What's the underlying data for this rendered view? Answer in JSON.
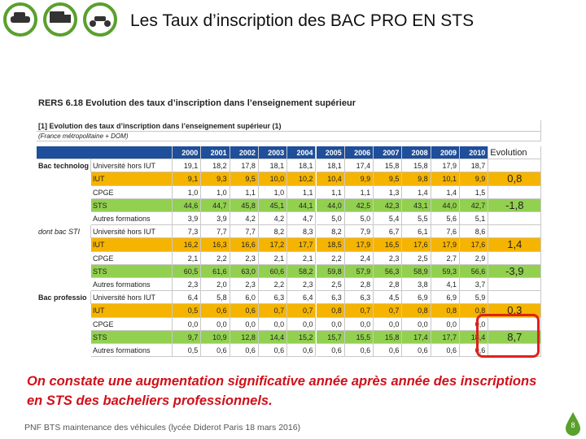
{
  "header": {
    "title": "Les Taux d’inscription des BAC PRO EN STS"
  },
  "table": {
    "title": "RERS 6.18 Evolution des taux d’inscription dans l’enseignement supérieur",
    "subtitle": "[1] Evolution des taux d’inscription dans l’enseignement supérieur (1)",
    "scope": "(France métropolitaine + DOM)",
    "columns": [
      "2000",
      "2001",
      "2002",
      "2003",
      "2004",
      "2005",
      "2006",
      "2007",
      "2008",
      "2009",
      "2010",
      "Evolution"
    ],
    "groups": [
      {
        "label": "Bac technolog",
        "rows": [
          {
            "label": "Université hors IUT",
            "values": [
              "19,1",
              "18,2",
              "17,8",
              "18,1",
              "18,1",
              "18,1",
              "17,4",
              "15,8",
              "15,8",
              "17,9",
              "18,7"
            ]
          },
          {
            "label": "IUT",
            "color": "#f5b400",
            "values": [
              "9,1",
              "9,3",
              "9,5",
              "10,0",
              "10,2",
              "10,4",
              "9,9",
              "9,5",
              "9,8",
              "10,1",
              "9,9"
            ],
            "evolution": "0,8"
          },
          {
            "label": "CPGE",
            "values": [
              "1,0",
              "1,0",
              "1,1",
              "1,0",
              "1,1",
              "1,1",
              "1,1",
              "1,3",
              "1,4",
              "1,4",
              "1,5"
            ]
          },
          {
            "label": "STS",
            "color": "#92d050",
            "values": [
              "44,6",
              "44,7",
              "45,8",
              "45,1",
              "44,1",
              "44,0",
              "42,5",
              "42,3",
              "43,1",
              "44,0",
              "42,7"
            ],
            "evolution": "-1,8"
          },
          {
            "label": "Autres formations",
            "values": [
              "3,9",
              "3,9",
              "4,2",
              "4,2",
              "4,7",
              "5,0",
              "5,0",
              "5,4",
              "5,5",
              "5,6",
              "5,1"
            ]
          }
        ]
      },
      {
        "label": "dont bac STI",
        "rows": [
          {
            "label": "Université hors IUT",
            "values": [
              "7,3",
              "7,7",
              "7,7",
              "8,2",
              "8,3",
              "8,2",
              "7,9",
              "6,7",
              "6,1",
              "7,6",
              "8,6"
            ]
          },
          {
            "label": "IUT",
            "color": "#f5b400",
            "values": [
              "16,2",
              "16,3",
              "16,6",
              "17,2",
              "17,7",
              "18,5",
              "17,9",
              "16,5",
              "17,6",
              "17,9",
              "17,6"
            ],
            "evolution": "1,4"
          },
          {
            "label": "CPGE",
            "values": [
              "2,1",
              "2,2",
              "2,3",
              "2,1",
              "2,1",
              "2,2",
              "2,4",
              "2,3",
              "2,5",
              "2,7",
              "2,9"
            ]
          },
          {
            "label": "STS",
            "color": "#92d050",
            "values": [
              "60,5",
              "61,6",
              "63,0",
              "60,6",
              "58,2",
              "59,8",
              "57,9",
              "56,3",
              "58,9",
              "59,3",
              "56,6"
            ],
            "evolution": "-3,9"
          },
          {
            "label": "Autres formations",
            "values": [
              "2,3",
              "2,0",
              "2,3",
              "2,2",
              "2,3",
              "2,5",
              "2,8",
              "2,8",
              "3,8",
              "4,1",
              "3,7"
            ]
          }
        ]
      },
      {
        "label": "Bac professio",
        "rows": [
          {
            "label": "Université hors IUT",
            "values": [
              "6,4",
              "5,8",
              "6,0",
              "6,3",
              "6,4",
              "6,3",
              "6,3",
              "4,5",
              "6,9",
              "6,9",
              "5,9"
            ]
          },
          {
            "label": "IUT",
            "color": "#f5b400",
            "values": [
              "0,5",
              "0,6",
              "0,6",
              "0,7",
              "0,7",
              "0,8",
              "0,7",
              "0,7",
              "0,8",
              "0,8",
              "0,8"
            ],
            "evolution": "0,3"
          },
          {
            "label": "CPGE",
            "values": [
              "0,0",
              "0,0",
              "0,0",
              "0,0",
              "0,0",
              "0,0",
              "0,0",
              "0,0",
              "0,0",
              "0,0",
              "0,0"
            ]
          },
          {
            "label": "STS",
            "color": "#92d050",
            "values": [
              "9,7",
              "10,9",
              "12,8",
              "14,4",
              "15,2",
              "15,7",
              "15,5",
              "15,8",
              "17,4",
              "17,7",
              "18,4"
            ],
            "evolution": "8,7"
          },
          {
            "label": "Autres formations",
            "values": [
              "0,5",
              "0,6",
              "0,6",
              "0,6",
              "0,6",
              "0,6",
              "0,6",
              "0,6",
              "0,6",
              "0,6",
              "0,6"
            ]
          }
        ]
      }
    ]
  },
  "caption": {
    "line1": "On constate une augmentation significative année après année des inscriptions",
    "line2": "en STS des bacheliers professionnels."
  },
  "footer": "PNF BTS maintenance des véhicules (lycée Diderot Paris 18 mars 2016)",
  "page_number": "8"
}
